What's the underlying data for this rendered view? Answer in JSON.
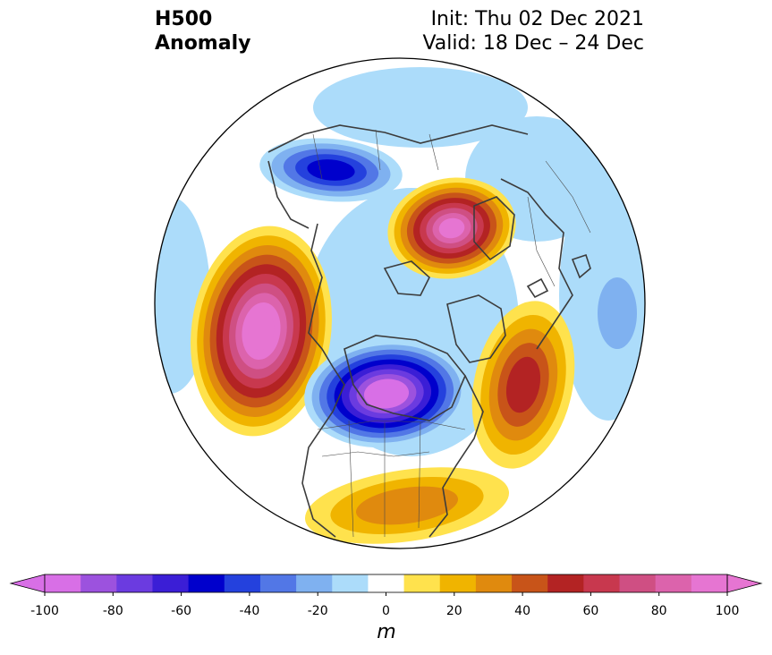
{
  "header": {
    "field": "H500",
    "kind": "Anomaly",
    "init": "Init: Thu 02 Dec 2021",
    "valid": "Valid: 18 Dec – 24 Dec"
  },
  "map": {
    "projection": "north-polar-stereographic",
    "coastline_color": "#3c3c3c",
    "border_color": "#000000",
    "anomaly_centers": [
      {
        "region": "North Pacific / Gulf of Alaska",
        "value": 100
      },
      {
        "region": "Scandinavia / Barents Sea",
        "value": 90
      },
      {
        "region": "Hudson Bay / Canada",
        "value": -100
      },
      {
        "region": "Eastern Siberia",
        "value": -50
      },
      {
        "region": "North Atlantic",
        "value": 50
      },
      {
        "region": "Southeast United States",
        "value": 30
      }
    ]
  },
  "colorbar": {
    "unit": "m",
    "ticks": [
      "-100",
      "-80",
      "-60",
      "-40",
      "-20",
      "0",
      "20",
      "40",
      "60",
      "80",
      "100"
    ],
    "levels": [
      -100,
      -90,
      -80,
      -70,
      -60,
      -50,
      -40,
      -30,
      -20,
      -10,
      10,
      20,
      30,
      40,
      50,
      60,
      70,
      80,
      90,
      100
    ],
    "colors": [
      "#d86fe6",
      "#9c52de",
      "#6b3be0",
      "#3b1ed6",
      "#0000cc",
      "#2441dd",
      "#5277e6",
      "#7fb1f0",
      "#acdcfa",
      "#ffffff",
      "#ffe24d",
      "#f0b400",
      "#e08a0e",
      "#c85419",
      "#b32323",
      "#c8384e",
      "#cf4f83",
      "#dc63ac",
      "#e675d2"
    ],
    "under_color": "#d86fe6",
    "over_color": "#e675d2"
  }
}
